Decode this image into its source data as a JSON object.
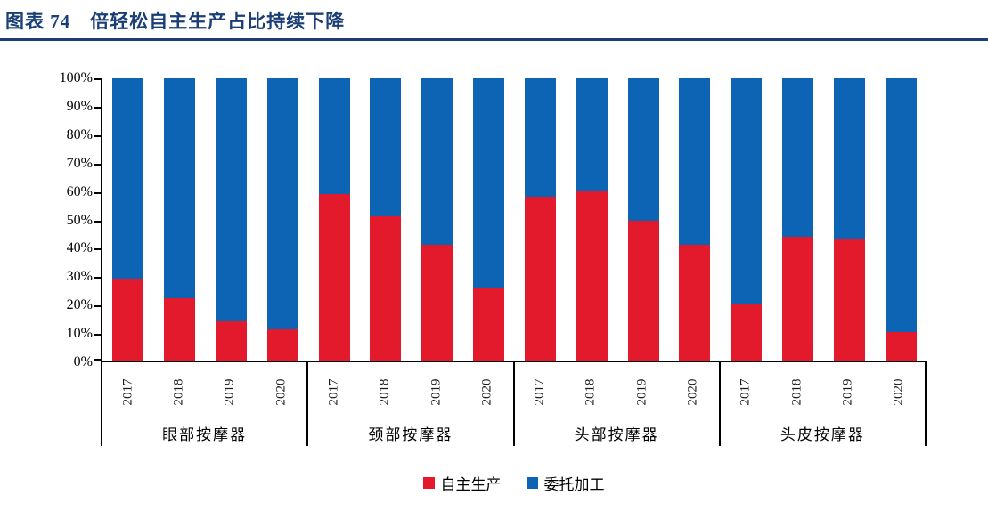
{
  "figure": {
    "label": "图表 74",
    "title": "倍轻松自主生产占比持续下降"
  },
  "colors": {
    "header_navy": "#1A3E75",
    "self_production_red": "#E3192C",
    "outsourced_blue": "#0D64B4",
    "axis_black": "#000000"
  },
  "chart_data": {
    "type": "bar",
    "variant": "100-percent-stacked-column",
    "title": "倍轻松自主生产占比持续下降",
    "groups": [
      "眼部按摩器",
      "颈部按摩器",
      "头部按摩器",
      "头皮按摩器"
    ],
    "years": [
      "2017",
      "2018",
      "2019",
      "2020"
    ],
    "series": [
      {
        "name": "自主生产",
        "color": "#E3192C",
        "values": [
          [
            29,
            22,
            14,
            11
          ],
          [
            59,
            51,
            41,
            26
          ],
          [
            58,
            60,
            49.5,
            41
          ],
          [
            20,
            44,
            43,
            10
          ]
        ]
      },
      {
        "name": "委托加工",
        "color": "#0D64B4",
        "values": [
          [
            71,
            78,
            86,
            89
          ],
          [
            41,
            49,
            59,
            74
          ],
          [
            42,
            40,
            50.5,
            59
          ],
          [
            80,
            56,
            57,
            90
          ]
        ]
      }
    ],
    "y_ticks": [
      "100%",
      "90%",
      "80%",
      "70%",
      "60%",
      "50%",
      "40%",
      "30%",
      "20%",
      "10%",
      "0%"
    ],
    "ylim": [
      0,
      100
    ],
    "grid": false,
    "legend_position": "bottom",
    "legend_entries": [
      "自主生产",
      "委托加工"
    ]
  }
}
